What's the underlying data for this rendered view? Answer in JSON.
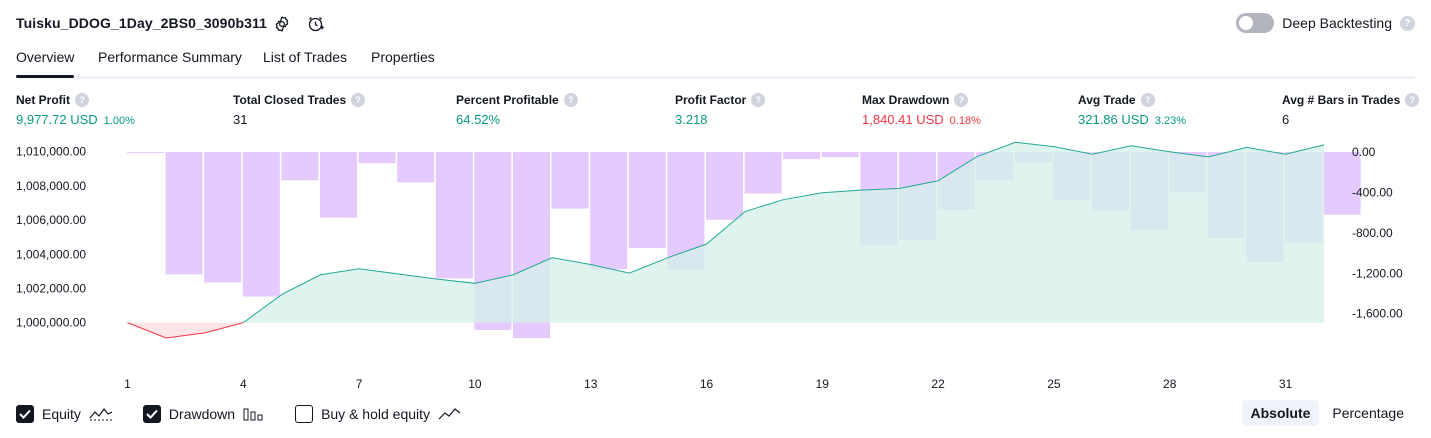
{
  "header": {
    "strategy_name": "Tuisku_DDOG_1Day_2BS0_3090b311",
    "deep_backtesting_label": "Deep Backtesting",
    "help_glyph": "?"
  },
  "tabs": [
    {
      "label": "Overview",
      "active": true
    },
    {
      "label": "Performance Summary",
      "active": false
    },
    {
      "label": "List of Trades",
      "active": false
    },
    {
      "label": "Properties",
      "active": false
    }
  ],
  "metrics": {
    "net_profit": {
      "label": "Net Profit",
      "value": "9,977.72 USD",
      "sub": "1.00%"
    },
    "total_closed_trades": {
      "label": "Total Closed Trades",
      "value": "31"
    },
    "percent_profitable": {
      "label": "Percent Profitable",
      "value": "64.52%"
    },
    "profit_factor": {
      "label": "Profit Factor",
      "value": "3.218"
    },
    "max_drawdown": {
      "label": "Max Drawdown",
      "value": "1,840.41 USD",
      "sub": "0.18%"
    },
    "avg_trade": {
      "label": "Avg Trade",
      "value": "321.86 USD",
      "sub": "3.23%"
    },
    "avg_bars": {
      "label": "Avg # Bars in Trades",
      "value": "6"
    }
  },
  "legend": {
    "equity_label": "Equity",
    "drawdown_label": "Drawdown",
    "buyhold_label": "Buy & hold equity",
    "equity_checked": true,
    "drawdown_checked": true,
    "buyhold_checked": false
  },
  "modes": {
    "absolute": "Absolute",
    "percentage": "Percentage",
    "selected": "absolute"
  },
  "colors": {
    "positive": "#089981",
    "negative": "#f23645",
    "drawdown_fill": "#e1c1ff",
    "equity_line": "#22ab94",
    "equity_fill": "#d4f0e8",
    "equity_loss_line": "#f23645"
  },
  "chart_data": {
    "type": "area",
    "x_ticks": [
      "1",
      "4",
      "7",
      "10",
      "13",
      "16",
      "19",
      "22",
      "25",
      "28",
      "31"
    ],
    "y_left_ticks": [
      "1,010,000.00",
      "1,008,000.00",
      "1,006,000.00",
      "1,004,000.00",
      "1,002,000.00",
      "1,000,000.00"
    ],
    "y_left_values": [
      1010000,
      1008000,
      1006000,
      1004000,
      1002000,
      1000000
    ],
    "y_right_ticks": [
      "0.00",
      "-400.00",
      "-800.00",
      "-1,200.00",
      "-1,600.00"
    ],
    "y_right_values": [
      0,
      -400,
      -800,
      -1200,
      -1600
    ],
    "ylim_left": [
      999100,
      1010100
    ],
    "ylim_right": [
      -1840,
      20
    ],
    "baseline": 1000000,
    "series": [
      {
        "name": "Equity",
        "x": [
          1,
          2,
          3,
          4,
          5,
          6,
          7,
          8,
          9,
          10,
          11,
          12,
          13,
          14,
          15,
          16,
          17,
          18,
          19,
          20,
          21,
          22,
          23,
          24,
          25,
          26,
          27,
          28,
          29,
          30,
          31,
          32
        ],
        "values": [
          1000000,
          999100,
          999400,
          1000000,
          1001650,
          1002800,
          1003150,
          1002850,
          1002550,
          1002300,
          1002800,
          1003800,
          1003400,
          1002900,
          1003800,
          1004600,
          1006500,
          1007200,
          1007600,
          1007750,
          1007850,
          1008300,
          1009700,
          1010550,
          1010300,
          1009850,
          1010350,
          1010000,
          1009700,
          1010250,
          1009850,
          1010400
        ]
      },
      {
        "name": "Drawdown",
        "x": [
          1,
          2,
          3,
          4,
          5,
          6,
          7,
          8,
          9,
          10,
          11,
          12,
          13,
          14,
          15,
          16,
          17,
          18,
          19,
          20,
          21,
          22,
          23,
          24,
          25,
          26,
          27,
          28,
          29,
          30,
          31,
          32
        ],
        "values": [
          -10,
          -1210,
          -1290,
          -1430,
          -280,
          -650,
          -110,
          -300,
          -1250,
          -1760,
          -1840,
          -560,
          -1160,
          -950,
          -1160,
          -670,
          -410,
          -70,
          -50,
          -920,
          -870,
          -570,
          -280,
          -100,
          -470,
          -580,
          -770,
          -400,
          -850,
          -1090,
          -900,
          -620
        ]
      }
    ]
  }
}
